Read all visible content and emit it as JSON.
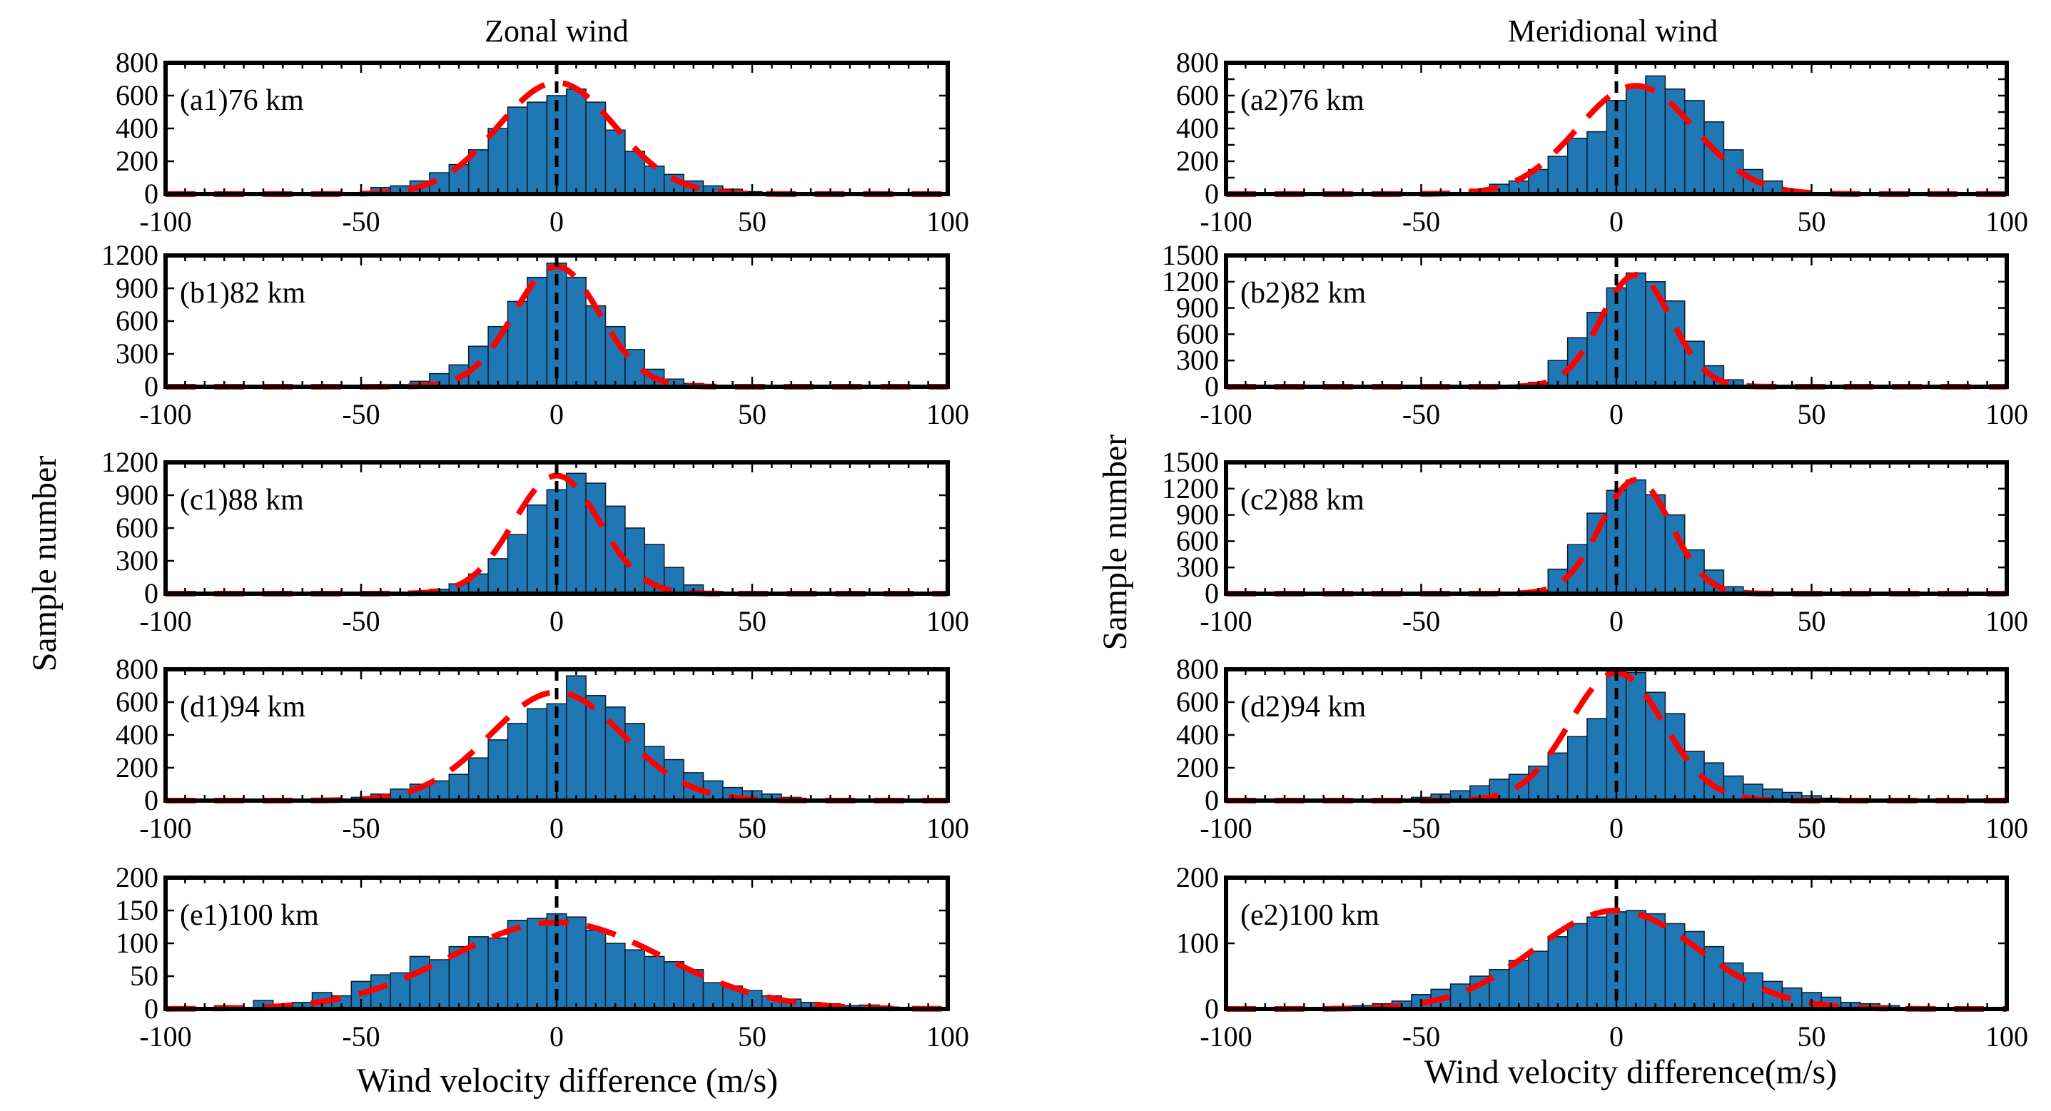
{
  "figure": {
    "left_title": "Zonal wind",
    "right_title": "Meridional wind",
    "y_label": "Sample number",
    "x_label_left": "Wind velocity difference (m/s)",
    "x_label_right": "Wind velocity difference(m/s)"
  },
  "colors": {
    "bar": "#1f77b4",
    "fit": "#ff0000",
    "zero_line": "#000000"
  },
  "chart_data": [
    {
      "id": "a1",
      "label": "(a1)76 km",
      "type": "bar",
      "xlim": [
        -100,
        100
      ],
      "ylim": [
        0,
        800
      ],
      "yticks": [
        0,
        200,
        400,
        600,
        800
      ],
      "xticks": [
        -100,
        -50,
        0,
        50,
        100
      ],
      "centers": [
        -45,
        -40,
        -35,
        -30,
        -25,
        -20,
        -15,
        -10,
        -5,
        0,
        5,
        10,
        15,
        20,
        25,
        30,
        35,
        40,
        45,
        50,
        55
      ],
      "values": [
        40,
        50,
        80,
        130,
        180,
        270,
        400,
        530,
        560,
        600,
        640,
        560,
        390,
        260,
        170,
        120,
        80,
        50,
        30,
        15,
        10
      ],
      "fit": {
        "amplitude": 680,
        "mean": 0,
        "sigma": 15
      }
    },
    {
      "id": "b1",
      "label": "(b1)82 km",
      "type": "bar",
      "xlim": [
        -100,
        100
      ],
      "ylim": [
        0,
        1200
      ],
      "yticks": [
        0,
        300,
        600,
        900,
        1200
      ],
      "xticks": [
        -100,
        -50,
        0,
        50,
        100
      ],
      "centers": [
        -40,
        -35,
        -30,
        -25,
        -20,
        -15,
        -10,
        -5,
        0,
        5,
        10,
        15,
        20,
        25,
        30,
        35,
        40
      ],
      "values": [
        20,
        50,
        120,
        200,
        370,
        550,
        780,
        1000,
        1130,
        1000,
        740,
        550,
        340,
        160,
        70,
        30,
        15
      ],
      "fit": {
        "amplitude": 1100,
        "mean": 0,
        "sigma": 11
      }
    },
    {
      "id": "c1",
      "label": "(c1)88 km",
      "type": "bar",
      "xlim": [
        -100,
        100
      ],
      "ylim": [
        0,
        1200
      ],
      "yticks": [
        0,
        300,
        600,
        900,
        1200
      ],
      "xticks": [
        -100,
        -50,
        0,
        50,
        100
      ],
      "centers": [
        -35,
        -30,
        -25,
        -20,
        -15,
        -10,
        -5,
        0,
        5,
        10,
        15,
        20,
        25,
        30,
        35,
        40
      ],
      "values": [
        20,
        40,
        90,
        180,
        320,
        540,
        810,
        950,
        1100,
        1010,
        800,
        600,
        450,
        240,
        80,
        20
      ],
      "fit": {
        "amplitude": 1080,
        "mean": 0,
        "sigma": 11
      }
    },
    {
      "id": "d1",
      "label": "(d1)94 km",
      "type": "bar",
      "xlim": [
        -100,
        100
      ],
      "ylim": [
        0,
        800
      ],
      "yticks": [
        0,
        200,
        400,
        600,
        800
      ],
      "xticks": [
        -100,
        -50,
        0,
        50,
        100
      ],
      "centers": [
        -55,
        -50,
        -45,
        -40,
        -35,
        -30,
        -25,
        -20,
        -15,
        -10,
        -5,
        0,
        5,
        10,
        15,
        20,
        25,
        30,
        35,
        40,
        45,
        50,
        55,
        60,
        65
      ],
      "values": [
        10,
        20,
        40,
        70,
        100,
        120,
        160,
        260,
        370,
        470,
        560,
        590,
        760,
        640,
        570,
        470,
        330,
        250,
        170,
        120,
        80,
        60,
        40,
        20,
        10
      ],
      "fit": {
        "amplitude": 660,
        "mean": 0,
        "sigma": 17
      }
    },
    {
      "id": "e1",
      "label": "(e1)100 km",
      "type": "bar",
      "xlim": [
        -100,
        100
      ],
      "ylim": [
        0,
        200
      ],
      "yticks": [
        0,
        50,
        100,
        150,
        200
      ],
      "xticks": [
        -100,
        -50,
        0,
        50,
        100
      ],
      "centers": [
        -85,
        -75,
        -65,
        -60,
        -55,
        -50,
        -45,
        -40,
        -35,
        -30,
        -25,
        -20,
        -15,
        -10,
        -5,
        0,
        5,
        10,
        15,
        20,
        25,
        30,
        35,
        40,
        45,
        50,
        55,
        60,
        65,
        70,
        75,
        80,
        85
      ],
      "values": [
        5,
        13,
        10,
        25,
        20,
        42,
        52,
        55,
        80,
        75,
        95,
        110,
        108,
        135,
        138,
        145,
        140,
        120,
        100,
        90,
        80,
        72,
        60,
        40,
        35,
        28,
        20,
        15,
        10,
        8,
        5,
        6,
        3
      ],
      "fit": {
        "amplitude": 132,
        "mean": 0,
        "sigma": 27
      }
    },
    {
      "id": "a2",
      "label": "(a2)76 km",
      "type": "bar",
      "xlim": [
        -100,
        100
      ],
      "ylim": [
        0,
        800
      ],
      "yticks": [
        0,
        100,
        200,
        300,
        400,
        500,
        600,
        700,
        800
      ],
      "ytick_labels": [
        0,
        "",
        200,
        "",
        400,
        "",
        600,
        "",
        800
      ],
      "xticks": [
        -100,
        -50,
        0,
        50,
        100
      ],
      "centers": [
        -40,
        -35,
        -30,
        -25,
        -20,
        -15,
        -10,
        -5,
        0,
        5,
        10,
        15,
        20,
        25,
        30,
        35,
        40,
        45
      ],
      "values": [
        10,
        30,
        60,
        80,
        150,
        230,
        340,
        380,
        570,
        650,
        720,
        640,
        570,
        440,
        270,
        150,
        80,
        10
      ],
      "fit": {
        "amplitude": 660,
        "mean": 5,
        "sigma": 15
      }
    },
    {
      "id": "b2",
      "label": "(b2)82 km",
      "type": "bar",
      "xlim": [
        -100,
        100
      ],
      "ylim": [
        0,
        1500
      ],
      "yticks": [
        0,
        300,
        600,
        900,
        1200,
        1500
      ],
      "xticks": [
        -100,
        -50,
        0,
        50,
        100
      ],
      "centers": [
        -25,
        -20,
        -15,
        -10,
        -5,
        0,
        5,
        10,
        15,
        20,
        25,
        30,
        35
      ],
      "values": [
        20,
        50,
        300,
        560,
        850,
        1130,
        1300,
        1200,
        980,
        520,
        240,
        80,
        20
      ],
      "fit": {
        "amplitude": 1280,
        "mean": 5,
        "sigma": 9
      }
    },
    {
      "id": "c2",
      "label": "(c2)88 km",
      "type": "bar",
      "xlim": [
        -100,
        100
      ],
      "ylim": [
        0,
        1500
      ],
      "yticks": [
        0,
        300,
        600,
        900,
        1200,
        1500
      ],
      "xticks": [
        -100,
        -50,
        0,
        50,
        100
      ],
      "centers": [
        -25,
        -20,
        -15,
        -10,
        -5,
        0,
        5,
        10,
        15,
        20,
        25,
        30,
        35
      ],
      "values": [
        10,
        40,
        280,
        560,
        920,
        1180,
        1300,
        1130,
        900,
        500,
        270,
        80,
        20
      ],
      "fit": {
        "amplitude": 1300,
        "mean": 5,
        "sigma": 9
      }
    },
    {
      "id": "d2",
      "label": "(d2)94 km",
      "type": "bar",
      "xlim": [
        -100,
        100
      ],
      "ylim": [
        0,
        800
      ],
      "yticks": [
        0,
        200,
        400,
        600,
        800
      ],
      "xticks": [
        -100,
        -50,
        0,
        50,
        100
      ],
      "centers": [
        -55,
        -50,
        -45,
        -40,
        -35,
        -30,
        -25,
        -20,
        -15,
        -10,
        -5,
        0,
        5,
        10,
        15,
        20,
        25,
        30,
        35,
        40,
        45,
        50,
        55,
        60
      ],
      "values": [
        10,
        20,
        40,
        60,
        90,
        130,
        160,
        210,
        290,
        390,
        500,
        790,
        780,
        660,
        530,
        300,
        230,
        150,
        100,
        70,
        50,
        30,
        15,
        10
      ],
      "fit": {
        "amplitude": 780,
        "mean": 0,
        "sigma": 12
      }
    },
    {
      "id": "e2",
      "label": "(e2)100 km",
      "type": "bar",
      "xlim": [
        -100,
        100
      ],
      "ylim": [
        0,
        200
      ],
      "yticks": [
        0,
        100,
        200
      ],
      "xticks": [
        -100,
        -50,
        0,
        50,
        100
      ],
      "centers": [
        -70,
        -65,
        -60,
        -55,
        -50,
        -45,
        -40,
        -35,
        -30,
        -25,
        -20,
        -15,
        -10,
        -5,
        0,
        5,
        10,
        15,
        20,
        25,
        30,
        35,
        40,
        45,
        50,
        55,
        60,
        65,
        70
      ],
      "values": [
        4,
        5,
        8,
        12,
        22,
        30,
        38,
        50,
        60,
        74,
        88,
        110,
        130,
        140,
        148,
        150,
        145,
        130,
        118,
        95,
        70,
        55,
        42,
        32,
        25,
        18,
        10,
        8,
        5
      ],
      "fit": {
        "amplitude": 150,
        "mean": 0,
        "sigma": 21
      }
    }
  ]
}
